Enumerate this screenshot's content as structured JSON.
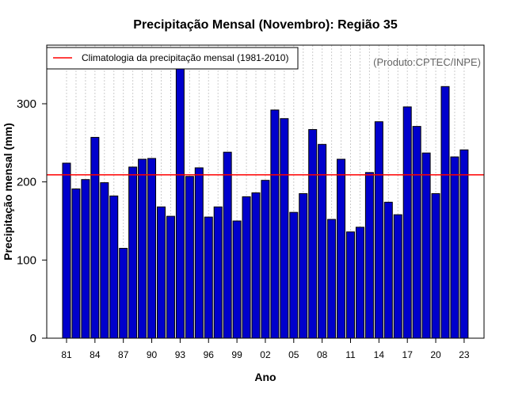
{
  "chart_data": {
    "type": "bar",
    "title": "Precipitação Mensal (Novembro): Região 35",
    "xlabel": "Ano",
    "ylabel": "Precipitação mensal (mm)",
    "ylim": [
      0,
      375
    ],
    "yticks": [
      0,
      100,
      200,
      300
    ],
    "categories": [
      "1981",
      "1982",
      "1983",
      "1984",
      "1985",
      "1986",
      "1987",
      "1988",
      "1989",
      "1990",
      "1991",
      "1992",
      "1993",
      "1994",
      "1995",
      "1996",
      "1997",
      "1998",
      "1999",
      "2000",
      "2001",
      "2002",
      "2003",
      "2004",
      "2005",
      "2006",
      "2007",
      "2008",
      "2009",
      "2010",
      "2011",
      "2012",
      "2013",
      "2014",
      "2015",
      "2016",
      "2017",
      "2018",
      "2019",
      "2020",
      "2021",
      "2022",
      "2023"
    ],
    "xtick_labels": [
      "81",
      "84",
      "87",
      "90",
      "93",
      "96",
      "99",
      "02",
      "05",
      "08",
      "11",
      "14",
      "17",
      "20",
      "23"
    ],
    "xtick_indices": [
      0,
      3,
      6,
      9,
      12,
      15,
      18,
      21,
      24,
      27,
      30,
      33,
      36,
      39,
      42
    ],
    "values": [
      224,
      191,
      203,
      257,
      199,
      182,
      115,
      219,
      229,
      230,
      168,
      156,
      348,
      207,
      218,
      155,
      168,
      238,
      150,
      181,
      186,
      202,
      292,
      281,
      161,
      185,
      267,
      248,
      152,
      229,
      136,
      142,
      212,
      277,
      174,
      158,
      296,
      271,
      237,
      185,
      322,
      232,
      241
    ],
    "climatology": {
      "label": "Climatologia da precipitação mensal (1981-2010)",
      "value": 209
    },
    "credit": "(Produto:CPTEC/INPE)",
    "colors": {
      "bar": "#0000cc",
      "bar_edge": "#000000",
      "climatology": "#ff0000",
      "grid": "#cccccc"
    },
    "grid": true,
    "legend_position": "top-left"
  }
}
